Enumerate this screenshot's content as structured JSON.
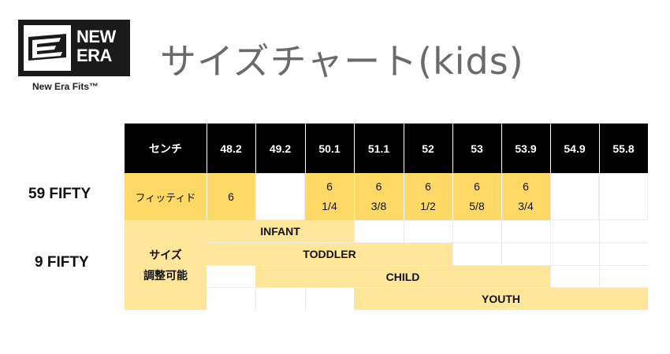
{
  "logo": {
    "line1": "NEW",
    "line2": "ERA",
    "tagline": "New Era Fits™"
  },
  "title": "サイズチャート(kids)",
  "row_labels": {
    "fitted": "59 FIFTY",
    "adjustable": "9 FIFTY"
  },
  "table": {
    "header_label": "センチ",
    "sizes_cm": [
      "48.2",
      "49.2",
      "50.1",
      "51.1",
      "52",
      "53",
      "53.9",
      "54.9",
      "55.8"
    ],
    "fitted_label": "フィッティド",
    "fitted_sizes": [
      {
        "whole": "6",
        "frac": ""
      },
      {
        "whole": "",
        "frac": ""
      },
      {
        "whole": "6",
        "frac": "1/4"
      },
      {
        "whole": "6",
        "frac": "3/8"
      },
      {
        "whole": "6",
        "frac": "1/2"
      },
      {
        "whole": "6",
        "frac": "5/8"
      },
      {
        "whole": "6",
        "frac": "3/4"
      },
      {
        "whole": "",
        "frac": ""
      },
      {
        "whole": "",
        "frac": ""
      }
    ],
    "adjustable_label_line1": "サイズ",
    "adjustable_label_line2": "調整可能",
    "ranges": [
      {
        "label": "INFANT",
        "from": "48.2",
        "to": "50.1"
      },
      {
        "label": "TODDLER",
        "from": "48.2",
        "to": "53"
      },
      {
        "label": "CHILD",
        "from": "49.2",
        "to": "53.9"
      },
      {
        "label": "YOUTH",
        "from": "51.1",
        "to": "55.8"
      }
    ]
  },
  "colors": {
    "header_bg": "#000000",
    "fitted_fill": "#ffd966",
    "range_fill": "#ffe699",
    "title_text": "#6a6a6a"
  }
}
